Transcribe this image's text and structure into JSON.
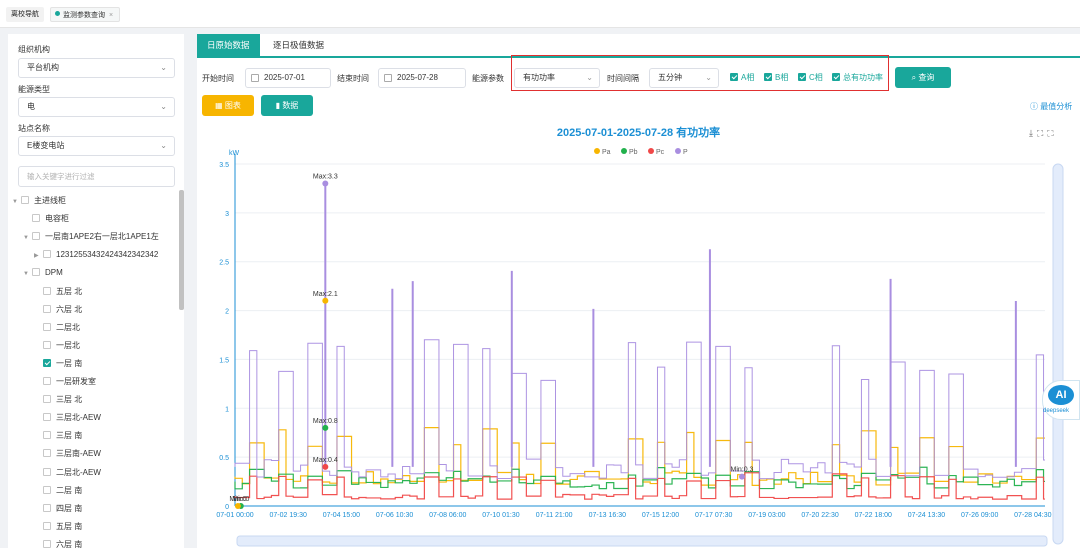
{
  "top_tabs": {
    "nav": "离校导航",
    "monitor": "监测参数查询",
    "close": "×"
  },
  "sidebar": {
    "org_label": "组织机构",
    "org_value": "平台机构",
    "energy_label": "能源类型",
    "energy_value": "电",
    "station_label": "站点名称",
    "station_value": "E楼变电站",
    "filter_placeholder": "输入关键字进行过滤",
    "tree": [
      {
        "label": "主进线柜",
        "depth": 0,
        "arrow": "▼",
        "checked": false
      },
      {
        "label": "电容柜",
        "depth": 1,
        "arrow": "",
        "checked": false
      },
      {
        "label": "一层南1APE2右一层北1APE1左",
        "depth": 1,
        "arrow": "▼",
        "checked": false
      },
      {
        "label": "12312553432424342342342",
        "depth": 2,
        "arrow": "▶",
        "checked": false
      },
      {
        "label": "DPM",
        "depth": 1,
        "arrow": "▼",
        "checked": false
      },
      {
        "label": "五层 北",
        "depth": 2,
        "arrow": "",
        "checked": false
      },
      {
        "label": "六层 北",
        "depth": 2,
        "arrow": "",
        "checked": false
      },
      {
        "label": "二层北",
        "depth": 2,
        "arrow": "",
        "checked": false
      },
      {
        "label": "一层北",
        "depth": 2,
        "arrow": "",
        "checked": false
      },
      {
        "label": "一层 南",
        "depth": 2,
        "arrow": "",
        "checked": true
      },
      {
        "label": "一层研发室",
        "depth": 2,
        "arrow": "",
        "checked": false
      },
      {
        "label": "三层 北",
        "depth": 2,
        "arrow": "",
        "checked": false
      },
      {
        "label": "三层北-AEW",
        "depth": 2,
        "arrow": "",
        "checked": false
      },
      {
        "label": "三层 南",
        "depth": 2,
        "arrow": "",
        "checked": false
      },
      {
        "label": "三层南-AEW",
        "depth": 2,
        "arrow": "",
        "checked": false
      },
      {
        "label": "二层北-AEW",
        "depth": 2,
        "arrow": "",
        "checked": false
      },
      {
        "label": "二层 南",
        "depth": 2,
        "arrow": "",
        "checked": false
      },
      {
        "label": "四层 南",
        "depth": 2,
        "arrow": "",
        "checked": false
      },
      {
        "label": "五层 南",
        "depth": 2,
        "arrow": "",
        "checked": false
      },
      {
        "label": "六层 南",
        "depth": 2,
        "arrow": "",
        "checked": false
      }
    ]
  },
  "main": {
    "tab_daily": "日原始数据",
    "tab_extreme": "逐日极值数据",
    "start_label": "开始时间",
    "start_value": "2025-07-01",
    "end_label": "结束时间",
    "end_value": "2025-07-28",
    "param_label": "能源参数",
    "param_value": "有功功率",
    "interval_label": "时间间隔",
    "interval_value": "五分钟",
    "checks": [
      {
        "label": "A相",
        "checked": true
      },
      {
        "label": "B相",
        "checked": true
      },
      {
        "label": "C相",
        "checked": true
      },
      {
        "label": "总有功功率",
        "checked": true
      }
    ],
    "query_button": "查询",
    "chart_button": "图表",
    "data_button": "数据",
    "best_analysis": "最值分析",
    "ai_label": "AI",
    "ai_sub": "deepseek"
  },
  "colors": {
    "accent": "#19a79b",
    "chart_button": "#f7b500",
    "title_blue": "#1b8fd4",
    "Pa": "#f7b500",
    "Pb": "#22b14c",
    "Pc": "#f04848",
    "P": "#a98ee0"
  },
  "chart_data": {
    "type": "line",
    "title": "2025-07-01-2025-07-28  有功功率",
    "ylabel": "kW",
    "ylim": [
      0,
      3.5
    ],
    "y_ticks": [
      "0",
      "0.5",
      "1",
      "1.5",
      "2",
      "2.5",
      "3",
      "3.5"
    ],
    "x_ticks": [
      "07-01 00:00",
      "07-02 19:30",
      "07-04 15:00",
      "07-06 10:30",
      "07-08 06:00",
      "07-10 01:30",
      "07-11 21:00",
      "07-13 16:30",
      "07-15 12:00",
      "07-17 07:30",
      "07-19 03:00",
      "07-20 22:30",
      "07-22 18:00",
      "07-24 13:30",
      "07-26 09:00",
      "07-28 04:30"
    ],
    "legend": [
      "Pa",
      "Pb",
      "Pc",
      "P"
    ],
    "grid": true,
    "series": [
      {
        "name": "Pa",
        "baseline": 0.3,
        "peak": 0.7,
        "max": 2.1,
        "min": 0
      },
      {
        "name": "Pb",
        "baseline": 0.25,
        "peak": 0.35,
        "max": 0.8,
        "min": 0
      },
      {
        "name": "Pc",
        "baseline": 0.1,
        "peak": 0.3,
        "max": 0.4,
        "min": 0
      },
      {
        "name": "P",
        "baseline": 0.4,
        "peak": 1.5,
        "max": 3.3,
        "min": 0.3
      }
    ],
    "annotations": [
      {
        "series": "P",
        "label": "Max:3.3",
        "x_day": 3.1,
        "value": 3.3
      },
      {
        "series": "Pa",
        "label": "Max:2.1",
        "x_day": 3.1,
        "value": 2.1
      },
      {
        "series": "Pb",
        "label": "Max:0.8",
        "x_day": 3.1,
        "value": 0.8
      },
      {
        "series": "Pc",
        "label": "Max:0.4",
        "x_day": 3.1,
        "value": 0.4
      },
      {
        "series": "P",
        "label": "Min:0.3",
        "x_day": 17.4,
        "value": 0.3
      },
      {
        "series": "Pb",
        "label": "Min:0",
        "x_day": 0.2,
        "value": 0
      },
      {
        "series": "Pa",
        "label": "Min:0",
        "x_day": 0.1,
        "value": 0
      }
    ]
  }
}
